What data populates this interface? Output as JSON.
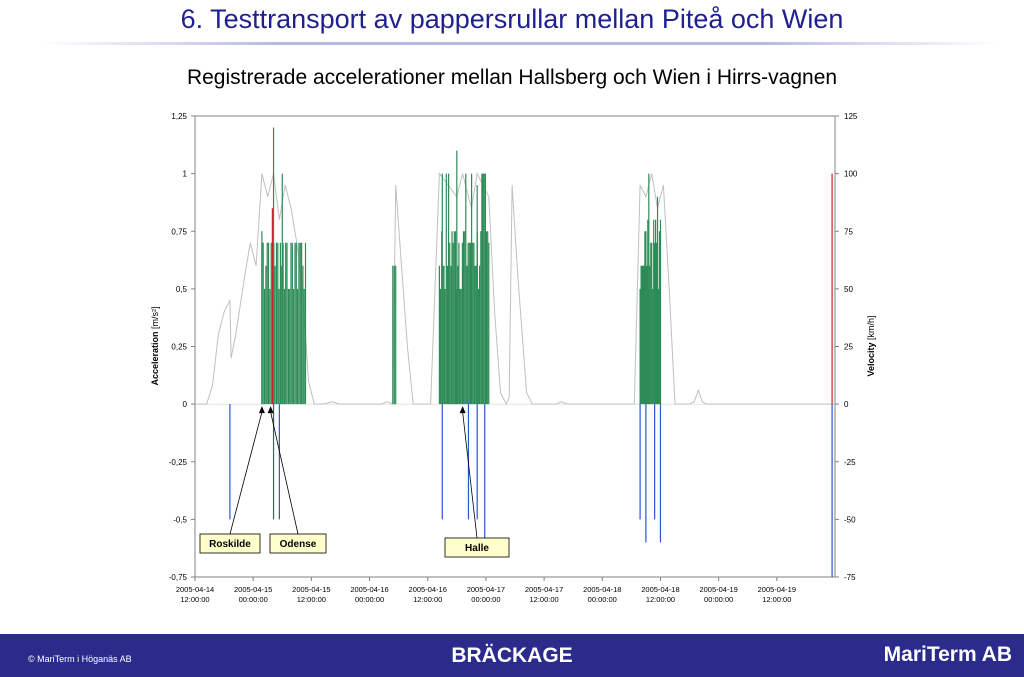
{
  "slide": {
    "title": "6. Testtransport av pappersrullar mellan Piteå och Wien"
  },
  "chart_data": {
    "type": "bar",
    "title": "Registrerade accelerationer mellan Hallsberg och Wien i Hirrs-vagnen",
    "ylabel": "Acceleration",
    "ylabel_unit": "[m/s²]",
    "y2label": "Velocity",
    "y2label_unit": "[km/h]",
    "ylim": [
      -0.75,
      1.25
    ],
    "y2lim": [
      -75,
      125
    ],
    "yticks": [
      "1,25",
      "1",
      "0,75",
      "0,5",
      "0,25",
      "0",
      "-0,25",
      "-0,5",
      "-0,75"
    ],
    "y2ticks": [
      "125",
      "100",
      "75",
      "50",
      "25",
      "0",
      "-25",
      "-50",
      "-75"
    ],
    "xticks": [
      [
        "2005-04-14",
        "12:00:00"
      ],
      [
        "2005-04-15",
        "00:00:00"
      ],
      [
        "2005-04-15",
        "12:00:00"
      ],
      [
        "2005-04-16",
        "00:00:00"
      ],
      [
        "2005-04-16",
        "12:00:00"
      ],
      [
        "2005-04-17",
        "00:00:00"
      ],
      [
        "2005-04-17",
        "12:00:00"
      ],
      [
        "2005-04-18",
        "00:00:00"
      ],
      [
        "2005-04-18",
        "12:00:00"
      ],
      [
        "2005-04-19",
        "00:00:00"
      ],
      [
        "2005-04-19",
        "12:00:00"
      ]
    ],
    "colors": {
      "green": "#2e8b57",
      "blue": "#2a55cc",
      "red": "#cc2222",
      "velocity": "#c0c0c0"
    },
    "green_bursts": [
      {
        "start": 1.15,
        "end": 1.9,
        "count": 34,
        "max": 0.7
      },
      {
        "start": 3.4,
        "end": 3.45,
        "count": 3,
        "max": 0.6
      },
      {
        "start": 4.2,
        "end": 5.05,
        "count": 44,
        "max": 1.0
      },
      {
        "start": 7.65,
        "end": 8.0,
        "count": 22,
        "max": 0.8
      }
    ],
    "green_spikes": [
      [
        1.35,
        1.2
      ],
      [
        1.15,
        0.75
      ],
      [
        1.5,
        1.0
      ],
      [
        4.5,
        1.1
      ],
      [
        4.25,
        1.0
      ],
      [
        4.85,
        0.95
      ],
      [
        7.8,
        1.0
      ],
      [
        7.95,
        0.9
      ]
    ],
    "red_spikes": [
      [
        1.33,
        0.85
      ],
      [
        10.95,
        1.0
      ]
    ],
    "blue_spikes": [
      [
        0.6,
        -0.5
      ],
      [
        1.35,
        -0.5
      ],
      [
        1.45,
        -0.5
      ],
      [
        4.25,
        -0.5
      ],
      [
        4.85,
        -0.5
      ],
      [
        4.98,
        -0.6
      ],
      [
        4.7,
        -0.5
      ],
      [
        7.65,
        -0.5
      ],
      [
        7.75,
        -0.6
      ],
      [
        7.9,
        -0.5
      ],
      [
        8.0,
        -0.6
      ],
      [
        10.95,
        -0.75
      ]
    ],
    "velocity": [
      [
        0,
        0
      ],
      [
        0.2,
        0
      ],
      [
        0.3,
        8
      ],
      [
        0.4,
        30
      ],
      [
        0.5,
        40
      ],
      [
        0.6,
        45
      ],
      [
        0.62,
        20
      ],
      [
        0.7,
        30
      ],
      [
        0.85,
        55
      ],
      [
        0.95,
        70
      ],
      [
        1.05,
        60
      ],
      [
        1.15,
        100
      ],
      [
        1.25,
        90
      ],
      [
        1.35,
        100
      ],
      [
        1.45,
        80
      ],
      [
        1.55,
        95
      ],
      [
        1.65,
        85
      ],
      [
        1.75,
        70
      ],
      [
        1.85,
        50
      ],
      [
        1.95,
        10
      ],
      [
        2.05,
        0
      ],
      [
        2.2,
        0
      ],
      [
        2.35,
        1
      ],
      [
        2.5,
        0
      ],
      [
        3.2,
        0
      ],
      [
        3.3,
        1
      ],
      [
        3.4,
        0
      ],
      [
        3.45,
        95
      ],
      [
        3.55,
        60
      ],
      [
        3.65,
        25
      ],
      [
        3.75,
        0
      ],
      [
        4.05,
        0
      ],
      [
        4.2,
        100
      ],
      [
        4.35,
        95
      ],
      [
        4.5,
        90
      ],
      [
        4.6,
        100
      ],
      [
        4.75,
        85
      ],
      [
        4.85,
        100
      ],
      [
        4.95,
        95
      ],
      [
        5.05,
        90
      ],
      [
        5.15,
        40
      ],
      [
        5.25,
        5
      ],
      [
        5.35,
        0
      ],
      [
        5.4,
        3
      ],
      [
        5.45,
        95
      ],
      [
        5.55,
        55
      ],
      [
        5.7,
        5
      ],
      [
        5.8,
        0
      ],
      [
        6.2,
        0
      ],
      [
        6.3,
        1
      ],
      [
        6.4,
        0
      ],
      [
        7.55,
        0
      ],
      [
        7.65,
        95
      ],
      [
        7.75,
        90
      ],
      [
        7.85,
        100
      ],
      [
        7.95,
        85
      ],
      [
        8.05,
        95
      ],
      [
        8.15,
        50
      ],
      [
        8.25,
        0
      ],
      [
        8.5,
        0
      ],
      [
        8.58,
        1
      ],
      [
        8.65,
        6
      ],
      [
        8.72,
        1
      ],
      [
        8.8,
        0
      ],
      [
        11,
        0
      ]
    ],
    "annotations": [
      {
        "label": "Roskilde",
        "x": 1.15
      },
      {
        "label": "Odense",
        "x": 1.3
      },
      {
        "label": "Halle",
        "x": 4.6
      }
    ]
  },
  "footer": {
    "copyright": "© MariTerm i Höganäs AB",
    "center": "BRÄCKAGE",
    "brand": "MariTerm AB"
  }
}
